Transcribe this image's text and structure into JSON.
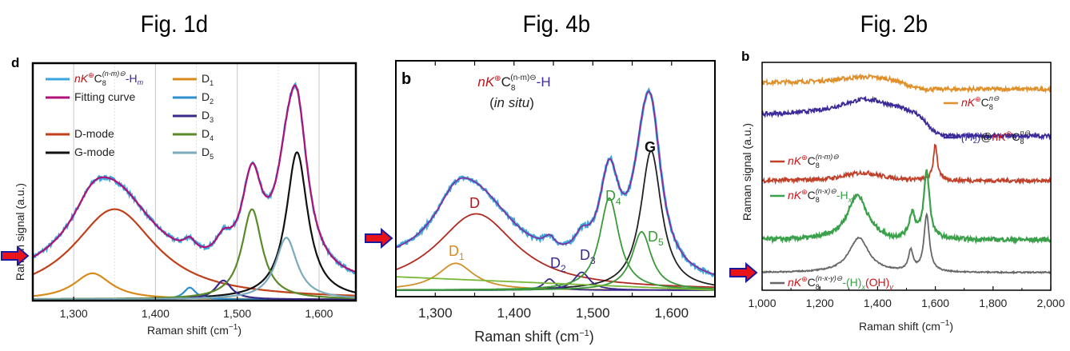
{
  "titles": [
    "Fig. 1d",
    "Fig. 4b",
    "Fig. 2b"
  ],
  "colors": {
    "arrow_fill": "#e8141a",
    "arrow_stroke": "#1a1aa0"
  },
  "chart_data": [
    {
      "type": "line",
      "panel_letter": "d",
      "title": "Fig. 1d",
      "xlabel": "Raman shift (cm",
      "xlabel_sup": "−1",
      "xlabel_end": ")",
      "ylabel": "Raman signal (a.u.)",
      "xlim": [
        1250,
        1645
      ],
      "ylim": [
        0,
        1.0
      ],
      "xticks": [
        1300,
        1400,
        1500,
        1600
      ],
      "xtick_labels": [
        "1,300",
        "1,400",
        "1,500",
        "1,600"
      ],
      "grid": true,
      "legend_position": "top-left",
      "legend": [
        {
          "label_parts": [
            "nK",
            "⊕",
            "C",
            "8",
            "(n-m)⊖",
            "-H",
            "m"
          ],
          "color": "#3aa6dd"
        },
        {
          "label": "Fitting curve",
          "color": "#b0127a"
        },
        {
          "label": "D-mode",
          "color": "#c0401a"
        },
        {
          "label": "G-mode",
          "color": "#111111"
        },
        {
          "label": "D",
          "sub": "1",
          "color": "#d88a1c"
        },
        {
          "label": "D",
          "sub": "2",
          "color": "#2e8fd0"
        },
        {
          "label": "D",
          "sub": "3",
          "color": "#3a2a8c"
        },
        {
          "label": "D",
          "sub": "4",
          "color": "#5a8a2a"
        },
        {
          "label": "D",
          "sub": "5",
          "color": "#7aaabb"
        }
      ],
      "baseline": 0.06,
      "components": [
        {
          "name": "D-mode",
          "center": 1350,
          "width": 62,
          "height": 0.38,
          "color": "#c0401a"
        },
        {
          "name": "G-mode",
          "center": 1573,
          "width": 16,
          "height": 0.62,
          "color": "#111111"
        },
        {
          "name": "D1",
          "center": 1323,
          "width": 28,
          "height": 0.11,
          "color": "#d88a1c"
        },
        {
          "name": "D2",
          "center": 1442,
          "width": 9,
          "height": 0.05,
          "color": "#2e8fd0"
        },
        {
          "name": "D3",
          "center": 1483,
          "width": 12,
          "height": 0.08,
          "color": "#3a2a8c"
        },
        {
          "name": "D4",
          "center": 1518,
          "width": 15,
          "height": 0.38,
          "color": "#5a8a2a"
        },
        {
          "name": "D5",
          "center": 1560,
          "width": 16,
          "height": 0.26,
          "color": "#7aaabb"
        }
      ]
    },
    {
      "type": "line",
      "panel_letter": "b",
      "title": "Fig. 4b",
      "annotation": [
        "nK",
        "⊕",
        "C",
        "8",
        "(n-m)⊖",
        "-H"
      ],
      "annotation2": [
        "(",
        "in situ",
        ")"
      ],
      "xlabel": "Raman shift (cm",
      "xlabel_sup": "−1",
      "xlabel_end": ")",
      "xlim": [
        1250,
        1655
      ],
      "ylim": [
        0,
        1.0
      ],
      "xticks": [
        1300,
        1400,
        1500,
        1600
      ],
      "xtick_labels": [
        "1,300",
        "1,400",
        "1,500",
        "1,600"
      ],
      "peak_labels": [
        {
          "text": "D",
          "color": "#c0141a"
        },
        {
          "text": "D",
          "sub": "1",
          "color": "#d88a1c"
        },
        {
          "text": "D",
          "sub": "2",
          "color": "#3a2a8c"
        },
        {
          "text": "D",
          "sub": "3",
          "color": "#3a2a8c"
        },
        {
          "text": "D",
          "sub": "4",
          "color": "#3a9a3a"
        },
        {
          "text": "D",
          "sub": "5",
          "color": "#3a9a3a"
        },
        {
          "text": "G",
          "color": "#111111"
        }
      ],
      "components": [
        {
          "name": "D",
          "center": 1352,
          "width": 62,
          "height": 0.34,
          "color": "#b02a22"
        },
        {
          "name": "G",
          "center": 1574,
          "width": 16,
          "height": 0.62,
          "color": "#222222"
        },
        {
          "name": "D1",
          "center": 1326,
          "width": 28,
          "height": 0.12,
          "color": "#d0902a"
        },
        {
          "name": "D2",
          "center": 1445,
          "width": 9,
          "height": 0.05,
          "color": "#3a2a8c"
        },
        {
          "name": "D3",
          "center": 1486,
          "width": 12,
          "height": 0.08,
          "color": "#3a2a8c"
        },
        {
          "name": "D4",
          "center": 1521,
          "width": 15,
          "height": 0.41,
          "color": "#3a9a3a"
        },
        {
          "name": "D5",
          "center": 1562,
          "width": 15,
          "height": 0.26,
          "color": "#3a9a3a"
        },
        {
          "name": "background",
          "linear": [
            0.06,
            0.0
          ],
          "color": "#7ab83a"
        }
      ],
      "data_color": "#3aa6dd",
      "fit_color": "#8a2a9a"
    },
    {
      "type": "line",
      "panel_letter": "b",
      "title": "Fig. 2b",
      "xlabel": "Raman shift (cm",
      "xlabel_sup": "−1",
      "xlabel_end": ")",
      "ylabel": "Raman signal (a.u.)",
      "xlim": [
        1000,
        2000
      ],
      "ylim": [
        0,
        1.0
      ],
      "xticks": [
        1000,
        1200,
        1400,
        1600,
        1800,
        2000
      ],
      "xtick_labels": [
        "1,000",
        "1,200",
        "1,400",
        "1,600",
        "1,800",
        "2,000"
      ],
      "series": [
        {
          "name": "nK⊕C8n⊖",
          "legend_parts": [
            "nK",
            "⊕",
            "C",
            "8",
            "n⊖"
          ],
          "color": "#e0902a",
          "offset": 0.9,
          "profile": "step",
          "level_before": 0.03,
          "level_after": 0.0,
          "step_center": 1500,
          "bump": 0.03
        },
        {
          "name": "(H2)@nK⊕C8n⊖",
          "legend_parts": [
            "(H",
            "2",
            ")",
            "@",
            "nK",
            "⊕",
            "C",
            "8",
            "n⊖"
          ],
          "color": "#3a2a9a",
          "offset": 0.67,
          "profile": "step",
          "level_before": 0.1,
          "level_after": 0.0,
          "step_center": 1570,
          "bump": 0.08
        },
        {
          "name": "nK⊕C8(n-m)⊖",
          "legend_parts": [
            "nK",
            "⊕",
            "C",
            "8",
            "(n-m)⊖"
          ],
          "color": "#c0402a",
          "offset": 0.45,
          "profile": "peak",
          "peaks": [
            [
              1350,
              80,
              0.04
            ],
            [
              1600,
              8,
              0.18
            ]
          ]
        },
        {
          "name": "nK⊕C8(n-x)⊖-Hx",
          "legend_parts": [
            "nK",
            "⊕",
            "C",
            "8",
            "(n-x)⊖",
            "-H",
            "x"
          ],
          "color": "#3aa04a",
          "offset": 0.16,
          "profile": "peak",
          "peaks": [
            [
              1330,
              42,
              0.22
            ],
            [
              1520,
              12,
              0.12
            ],
            [
              1570,
              12,
              0.33
            ],
            [
              1450,
              20,
              -0.01
            ]
          ]
        },
        {
          "name": "nK⊕C8(n-x-y)⊖-(H)x(OH)y",
          "legend_parts": [
            "nK",
            "⊕",
            "C",
            "8",
            "(n-x-y)⊖",
            "-(H)",
            "x",
            "(OH)",
            "y"
          ],
          "color": "#666666",
          "offset": 0.0,
          "profile": "peak",
          "peaks": [
            [
              1335,
              42,
              0.17
            ],
            [
              1515,
              10,
              0.1
            ],
            [
              1570,
              11,
              0.28
            ]
          ]
        }
      ]
    }
  ]
}
